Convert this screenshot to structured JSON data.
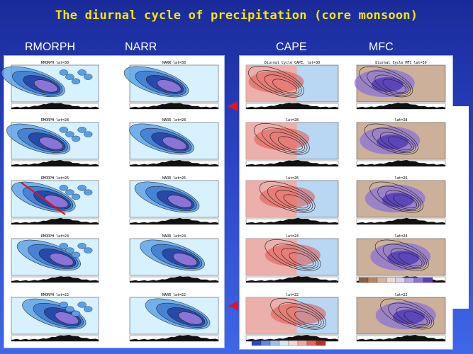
{
  "slide": {
    "title": "The diurnal cycle of precipitation (core monsoon)",
    "columns": [
      "RMORPH",
      "NARR",
      "CAPE",
      "MFC"
    ]
  },
  "panels": {
    "rmorph": [
      "RMORPH lat=30",
      "RMORPH lat=28",
      "RMORPH lat=26",
      "RMORPH lat=24",
      "RMORPH lat=22"
    ],
    "narr": [
      "NARR lat=30",
      "NARR lat=28",
      "NARR lat=26",
      "NARR lat=24",
      "NARR lat=22"
    ],
    "cape": [
      "Diurnal Cycle CAPE, lat=30",
      "lat=28",
      "lat=26",
      "lat=24",
      "lat=22"
    ],
    "mfc": [
      "Diurnal Cycle MFC lat=30",
      "lat=28",
      "lat=26",
      "lat=24",
      "lat=22"
    ]
  },
  "colors": {
    "title": "#ffe600",
    "column_header": "#ffffff",
    "arrow": "#e3112a",
    "precip_light": "#d7f1ff",
    "precip_mid": "#5aa0e6",
    "precip_dark": "#1f3c9c",
    "cape_warm": "#f3a8a0",
    "cape_cool": "#b9d6f2",
    "mfc_brown": "#cdb09a",
    "mfc_purple": "#8a73d6"
  }
}
